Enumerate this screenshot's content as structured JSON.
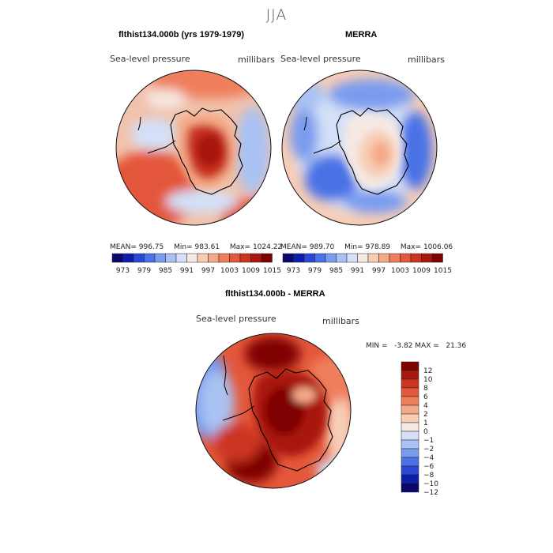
{
  "season": "JJA",
  "colors": {
    "ocean_base": "#f4d9cc",
    "land_outline": "#000000",
    "palette": [
      "#08086b",
      "#0d1fa8",
      "#2a48d8",
      "#4a72e6",
      "#7a9cef",
      "#a9c2f3",
      "#d3e0f8",
      "#f6e9e3",
      "#f8cdb6",
      "#f4aa88",
      "#ef7f5c",
      "#e4573a",
      "#cc3420",
      "#a9170f",
      "#7e0000"
    ]
  },
  "panels": [
    {
      "id": "model",
      "title": "flthist134.000b (yrs 1979-1979)",
      "field_label": "Sea-level pressure",
      "units": "millibars",
      "mean_label": "MEAN=",
      "mean": "996.75",
      "min_label": "Min=",
      "min": "983.61",
      "max_label": "Max=",
      "max": "1024.22"
    },
    {
      "id": "merra",
      "title": "MERRA",
      "field_label": "Sea-level pressure",
      "units": "millibars",
      "mean_label": "MEAN=",
      "mean": "989.70",
      "min_label": "Min=",
      "min": "978.89",
      "max_label": "Max=",
      "max": "1006.06"
    },
    {
      "id": "diff",
      "title": "flthist134.000b - MERRA",
      "field_label": "Sea-level pressure",
      "units": "millibars",
      "minmax_text": "MIN =   -3.82 MAX =   21.36"
    }
  ],
  "horizontal_colorbar": {
    "tick_labels": [
      "973",
      "979",
      "985",
      "991",
      "997",
      "1003",
      "1009",
      "1015"
    ]
  },
  "vertical_colorbar": {
    "tick_labels": [
      "12",
      "10",
      "8",
      "6",
      "4",
      "2",
      "1",
      "0",
      "−1",
      "−2",
      "−4",
      "−6",
      "−8",
      "−10",
      "−12"
    ]
  },
  "chart_data": [
    {
      "type": "heatmap",
      "title": "flthist134.000b (yrs 1979-1979)",
      "variable": "Sea-level pressure",
      "units": "millibars",
      "projection": "south polar stereographic",
      "mean": 996.75,
      "min": 983.61,
      "max": 1024.22,
      "levels": [
        973,
        976,
        979,
        982,
        985,
        988,
        991,
        994,
        997,
        1000,
        1003,
        1006,
        1009,
        1012,
        1015
      ]
    },
    {
      "type": "heatmap",
      "title": "MERRA",
      "variable": "Sea-level pressure",
      "units": "millibars",
      "projection": "south polar stereographic",
      "mean": 989.7,
      "min": 978.89,
      "max": 1006.06,
      "levels": [
        973,
        976,
        979,
        982,
        985,
        988,
        991,
        994,
        997,
        1000,
        1003,
        1006,
        1009,
        1012,
        1015
      ]
    },
    {
      "type": "heatmap",
      "title": "flthist134.000b - MERRA",
      "variable": "Sea-level pressure",
      "units": "millibars",
      "projection": "south polar stereographic",
      "min": -3.82,
      "max": 21.36,
      "levels": [
        -12,
        -10,
        -8,
        -6,
        -4,
        -2,
        -1,
        0,
        1,
        2,
        4,
        6,
        8,
        10,
        12
      ]
    }
  ]
}
